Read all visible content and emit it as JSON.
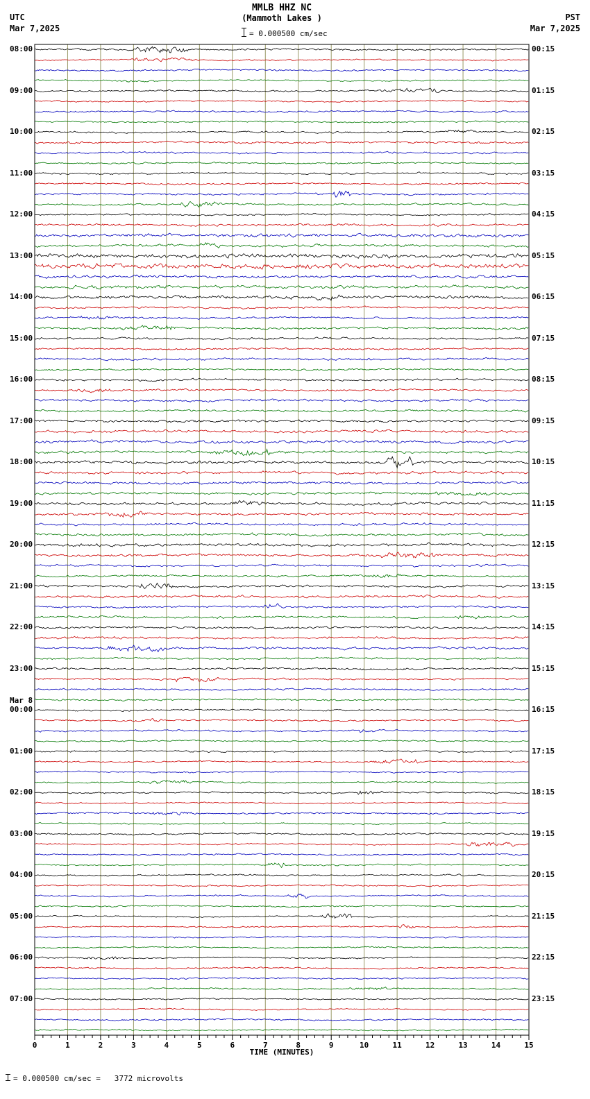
{
  "header": {
    "station": "MMLB HHZ NC",
    "location": "(Mammoth Lakes )",
    "scale_text": "= 0.000500 cm/sec",
    "left_tz": "UTC",
    "left_date": "Mar 7,2025",
    "right_tz": "PST",
    "right_date": "Mar 7,2025"
  },
  "footer": {
    "scale_note": "= 0.000500 cm/sec =   3772 microvolts",
    "xaxis_label": "TIME (MINUTES)"
  },
  "chart_data": {
    "type": "line",
    "title": "MMLB HHZ NC (Mammoth Lakes) 24-hour helicorder record",
    "xlabel": "TIME (MINUTES)",
    "x_range": [
      0,
      15
    ],
    "x_ticks": [
      0,
      1,
      2,
      3,
      4,
      5,
      6,
      7,
      8,
      9,
      10,
      11,
      12,
      13,
      14,
      15
    ],
    "minutes_per_row": 15,
    "rows_per_hour": 4,
    "trace_colors": [
      "#000000",
      "#cc0000",
      "#0000bb",
      "#007700"
    ],
    "grid_color": "#999966",
    "seed": 20250307,
    "hours": [
      {
        "utc": "08:00",
        "pst": "00:15"
      },
      {
        "utc": "09:00",
        "pst": "01:15"
      },
      {
        "utc": "10:00",
        "pst": "02:15"
      },
      {
        "utc": "11:00",
        "pst": "03:15"
      },
      {
        "utc": "12:00",
        "pst": "04:15"
      },
      {
        "utc": "13:00",
        "pst": "05:15"
      },
      {
        "utc": "14:00",
        "pst": "06:15"
      },
      {
        "utc": "15:00",
        "pst": "07:15"
      },
      {
        "utc": "16:00",
        "pst": "08:15"
      },
      {
        "utc": "17:00",
        "pst": "09:15"
      },
      {
        "utc": "18:00",
        "pst": "10:15"
      },
      {
        "utc": "19:00",
        "pst": "11:15"
      },
      {
        "utc": "20:00",
        "pst": "12:15"
      },
      {
        "utc": "21:00",
        "pst": "13:15"
      },
      {
        "utc": "22:00",
        "pst": "14:15"
      },
      {
        "utc": "23:00",
        "pst": "15:15"
      },
      {
        "utc": "00:00",
        "pst": "16:15",
        "date": "Mar 8"
      },
      {
        "utc": "01:00",
        "pst": "17:15"
      },
      {
        "utc": "02:00",
        "pst": "18:15"
      },
      {
        "utc": "03:00",
        "pst": "19:15"
      },
      {
        "utc": "04:00",
        "pst": "20:15"
      },
      {
        "utc": "05:00",
        "pst": "21:15"
      },
      {
        "utc": "06:00",
        "pst": "22:15"
      },
      {
        "utc": "07:00",
        "pst": "23:15"
      }
    ],
    "amps": [
      1.2,
      1.0,
      1.1,
      1.0,
      1.1,
      1.0,
      1.2,
      1.0,
      1.3,
      1.4,
      1.2,
      1.1,
      1.2,
      1.1,
      1.3,
      1.2,
      1.2,
      1.5,
      2.2,
      1.8,
      2.8,
      3.2,
      2.0,
      2.2,
      2.0,
      1.4,
      1.3,
      1.5,
      1.4,
      1.3,
      1.5,
      1.2,
      1.5,
      1.3,
      1.6,
      1.4,
      1.6,
      1.8,
      1.9,
      1.7,
      2.0,
      1.8,
      1.7,
      1.6,
      1.8,
      1.6,
      1.5,
      1.6,
      2.0,
      1.7,
      1.4,
      1.3,
      1.5,
      1.6,
      1.3,
      1.4,
      1.4,
      1.5,
      1.6,
      1.3,
      1.3,
      1.2,
      1.1,
      1.2,
      1.2,
      1.1,
      1.2,
      1.1,
      1.2,
      1.0,
      1.0,
      1.0,
      1.1,
      1.0,
      1.1,
      1.0,
      1.1,
      1.0,
      1.0,
      1.0,
      1.0,
      1.0,
      1.0,
      1.0,
      1.0,
      1.0,
      1.0,
      1.0,
      1.0,
      1.0,
      1.0,
      1.0,
      1.0,
      1.0,
      1.0,
      1.0
    ]
  }
}
